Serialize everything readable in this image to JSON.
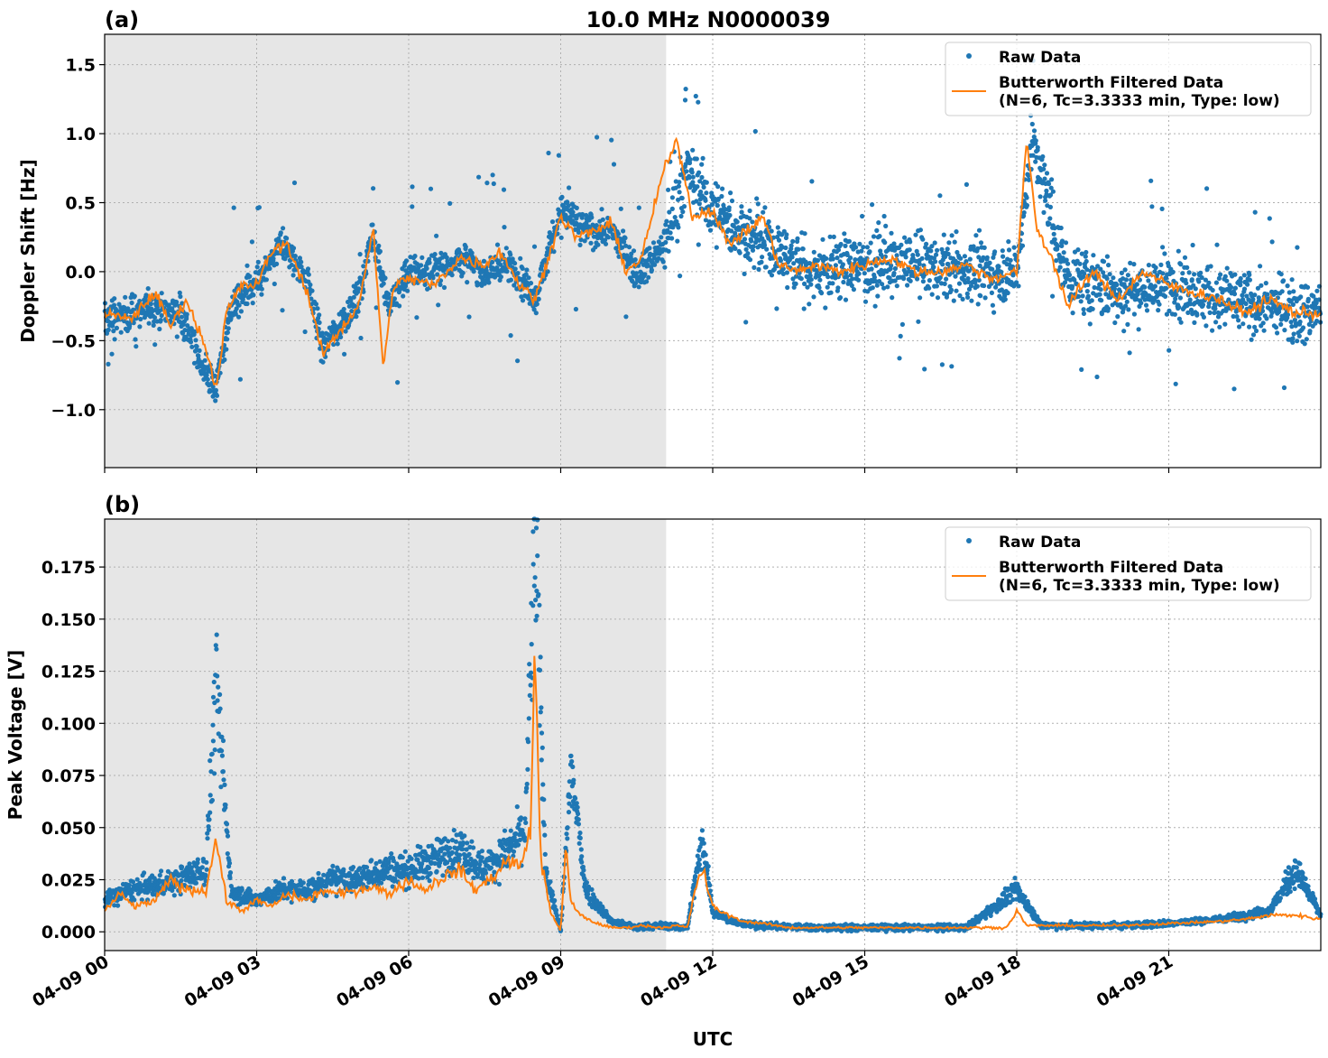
{
  "figure": {
    "title": "10.0 MHz N0000039",
    "xlabel": "UTC"
  },
  "colors": {
    "raw": "#1f77b4",
    "filtered": "#ff7f0e",
    "shade": "#e6e6e6",
    "grid": "#b0b0b0"
  },
  "chart_data": [
    {
      "type": "scatter",
      "panel_label": "(a)",
      "ylabel": "Doppler Shift [Hz]",
      "ylim": [
        -1.42,
        1.72
      ],
      "yticks": [
        -1.0,
        -0.5,
        0.0,
        0.5,
        1.0,
        1.5
      ],
      "ytick_labels": [
        "−1.0",
        "−0.5",
        "0.0",
        "0.5",
        "1.0",
        "1.5"
      ],
      "xlim_hours": [
        0,
        24
      ],
      "x_tick_hours": [
        0,
        3,
        6,
        9,
        12,
        15,
        18,
        21
      ],
      "shaded_hours": [
        0,
        11.08
      ],
      "grid": true,
      "legend": {
        "placement": "top-right",
        "entries": [
          "Raw Data",
          "Butterworth Filtered Data",
          "(N=6, Tc=3.3333 min, Type: low)"
        ]
      },
      "series": [
        {
          "name": "Raw Data",
          "style": "points",
          "x_hours": [
            0,
            0.5,
            1,
            1.5,
            2,
            2.2,
            2.5,
            3,
            3.5,
            4,
            4.3,
            4.7,
            5,
            5.3,
            5.6,
            6,
            6.5,
            7,
            7.5,
            8,
            8.5,
            9,
            9.5,
            10,
            10.5,
            11,
            11.5,
            12,
            12.5,
            13,
            13.5,
            14,
            15,
            16,
            17,
            18,
            18.3,
            19,
            20,
            21,
            22,
            23,
            24
          ],
          "y": [
            -0.35,
            -0.3,
            -0.25,
            -0.3,
            -0.75,
            -0.85,
            -0.25,
            -0.1,
            0.2,
            -0.05,
            -0.55,
            -0.35,
            -0.2,
            0.3,
            -0.25,
            0.0,
            0.0,
            0.1,
            0.0,
            0.05,
            -0.2,
            0.45,
            0.3,
            0.3,
            0.0,
            0.15,
            0.75,
            0.45,
            0.3,
            0.2,
            0.1,
            0.0,
            0.05,
            0.05,
            0.0,
            0.0,
            0.95,
            -0.05,
            -0.15,
            -0.1,
            -0.2,
            -0.25,
            -0.3
          ]
        },
        {
          "name": "Butterworth Filtered Data",
          "style": "line",
          "x_hours": [
            0,
            0.5,
            1,
            1.3,
            1.6,
            2,
            2.2,
            2.4,
            2.7,
            3,
            3.3,
            3.6,
            4,
            4.3,
            4.6,
            5,
            5.3,
            5.5,
            5.7,
            6,
            6.5,
            7,
            7.5,
            7.8,
            8.2,
            8.5,
            9,
            9.3,
            9.7,
            10,
            10.3,
            10.6,
            11,
            11.3,
            11.6,
            12,
            12.3,
            12.7,
            13,
            13.3,
            13.7,
            14,
            14.5,
            15,
            15.5,
            16,
            16.5,
            17,
            17.5,
            18,
            18.2,
            18.4,
            18.7,
            19,
            19.5,
            20,
            20.5,
            21,
            21.5,
            22,
            22.5,
            23,
            23.5,
            24
          ],
          "y": [
            -0.3,
            -0.35,
            -0.15,
            -0.4,
            -0.2,
            -0.55,
            -0.85,
            -0.3,
            -0.1,
            -0.1,
            0.15,
            0.2,
            -0.15,
            -0.6,
            -0.45,
            -0.25,
            0.3,
            -0.7,
            -0.1,
            -0.05,
            -0.1,
            0.1,
            0.05,
            0.15,
            -0.1,
            -0.2,
            0.4,
            0.25,
            0.3,
            0.35,
            0.0,
            0.1,
            0.7,
            0.95,
            0.4,
            0.45,
            0.2,
            0.3,
            0.4,
            0.05,
            0.0,
            0.05,
            0.0,
            0.05,
            0.1,
            0.0,
            0.0,
            0.05,
            -0.05,
            0.0,
            0.95,
            0.3,
            0.1,
            -0.25,
            0.0,
            -0.2,
            0.0,
            -0.1,
            -0.15,
            -0.2,
            -0.3,
            -0.2,
            -0.3,
            -0.3
          ]
        }
      ]
    },
    {
      "type": "scatter",
      "panel_label": "(b)",
      "ylabel": "Peak Voltage [V]",
      "ylim": [
        -0.009,
        0.198
      ],
      "yticks": [
        0.0,
        0.025,
        0.05,
        0.075,
        0.1,
        0.125,
        0.15,
        0.175
      ],
      "ytick_labels": [
        "0.000",
        "0.025",
        "0.050",
        "0.075",
        "0.100",
        "0.125",
        "0.150",
        "0.175"
      ],
      "xlim_hours": [
        0,
        24
      ],
      "x_tick_hours": [
        0,
        3,
        6,
        9,
        12,
        15,
        18,
        21
      ],
      "x_tick_labels": [
        "04-09 00",
        "04-09 03",
        "04-09 06",
        "04-09 09",
        "04-09 12",
        "04-09 15",
        "04-09 18",
        "04-09 21"
      ],
      "shaded_hours": [
        0,
        11.08
      ],
      "grid": true,
      "legend": {
        "placement": "top-right",
        "entries": [
          "Raw Data",
          "Butterworth Filtered Data",
          "(N=6, Tc=3.3333 min, Type: low)"
        ]
      },
      "series": [
        {
          "name": "Raw Data",
          "style": "points",
          "x_hours": [
            0,
            0.5,
            1,
            1.5,
            2,
            2.2,
            2.5,
            3,
            3.5,
            4,
            4.5,
            5,
            5.5,
            6,
            6.5,
            7,
            7.5,
            8,
            8.3,
            8.5,
            8.7,
            9,
            9.2,
            9.5,
            10,
            10.5,
            11,
            11.5,
            11.8,
            12,
            12.5,
            13,
            14,
            15,
            16,
            17,
            18,
            18.5,
            19,
            20,
            21,
            22,
            23,
            23.5,
            24
          ],
          "y": [
            0.015,
            0.02,
            0.022,
            0.025,
            0.03,
            0.119,
            0.02,
            0.015,
            0.02,
            0.02,
            0.025,
            0.025,
            0.03,
            0.03,
            0.035,
            0.04,
            0.03,
            0.04,
            0.05,
            0.189,
            0.03,
            0.0,
            0.078,
            0.02,
            0.005,
            0.002,
            0.003,
            0.002,
            0.045,
            0.01,
            0.004,
            0.003,
            0.002,
            0.002,
            0.002,
            0.002,
            0.02,
            0.003,
            0.003,
            0.003,
            0.004,
            0.006,
            0.01,
            0.03,
            0.008
          ]
        },
        {
          "name": "Butterworth Filtered Data",
          "style": "line",
          "x_hours": [
            0,
            0.3,
            0.6,
            1,
            1.3,
            1.6,
            2,
            2.2,
            2.4,
            2.7,
            3,
            3.3,
            3.6,
            4,
            4.3,
            4.6,
            5,
            5.3,
            5.6,
            6,
            6.3,
            6.6,
            7,
            7.3,
            7.6,
            8,
            8.2,
            8.4,
            8.5,
            8.6,
            8.8,
            9,
            9.1,
            9.2,
            9.3,
            9.6,
            10,
            10.3,
            10.6,
            11,
            11.3,
            11.5,
            11.7,
            11.8,
            12,
            12.3,
            12.6,
            13,
            13.5,
            14,
            15,
            16,
            17,
            17.8,
            18,
            18.2,
            19,
            20,
            21,
            22,
            22.5,
            23,
            23.5,
            24
          ],
          "y": [
            0.01,
            0.018,
            0.012,
            0.015,
            0.025,
            0.02,
            0.02,
            0.045,
            0.015,
            0.01,
            0.015,
            0.012,
            0.018,
            0.015,
            0.02,
            0.018,
            0.02,
            0.022,
            0.018,
            0.025,
            0.02,
            0.025,
            0.03,
            0.02,
            0.025,
            0.035,
            0.03,
            0.05,
            0.135,
            0.035,
            0.01,
            0.0,
            0.04,
            0.015,
            0.01,
            0.005,
            0.002,
            0.002,
            0.003,
            0.002,
            0.003,
            0.002,
            0.025,
            0.03,
            0.012,
            0.008,
            0.005,
            0.004,
            0.002,
            0.002,
            0.002,
            0.002,
            0.002,
            0.002,
            0.01,
            0.003,
            0.003,
            0.003,
            0.004,
            0.005,
            0.006,
            0.008,
            0.008,
            0.006
          ]
        }
      ]
    }
  ]
}
